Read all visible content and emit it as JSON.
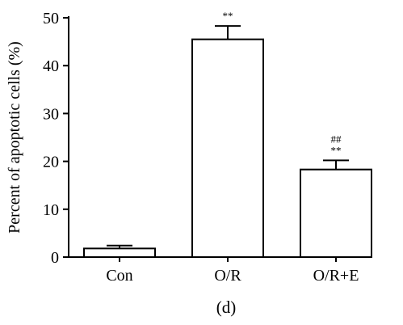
{
  "chart_data": {
    "type": "bar",
    "ylabel": "Percent of apoptotic cells (%)",
    "xlabel": "",
    "ylim": [
      0,
      50
    ],
    "yticks": [
      0,
      10,
      20,
      30,
      40,
      50
    ],
    "categories": [
      "Con",
      "O/R",
      "O/R+E"
    ],
    "values": [
      1.8,
      45.5,
      18.3
    ],
    "errors": [
      0.6,
      2.8,
      1.9
    ],
    "annotations": [
      [],
      [
        "**"
      ],
      [
        "##",
        "**"
      ]
    ],
    "bar_fill": "#ffffff",
    "bar_stroke": "#000000",
    "grid": false,
    "panel_label": "(d)"
  }
}
